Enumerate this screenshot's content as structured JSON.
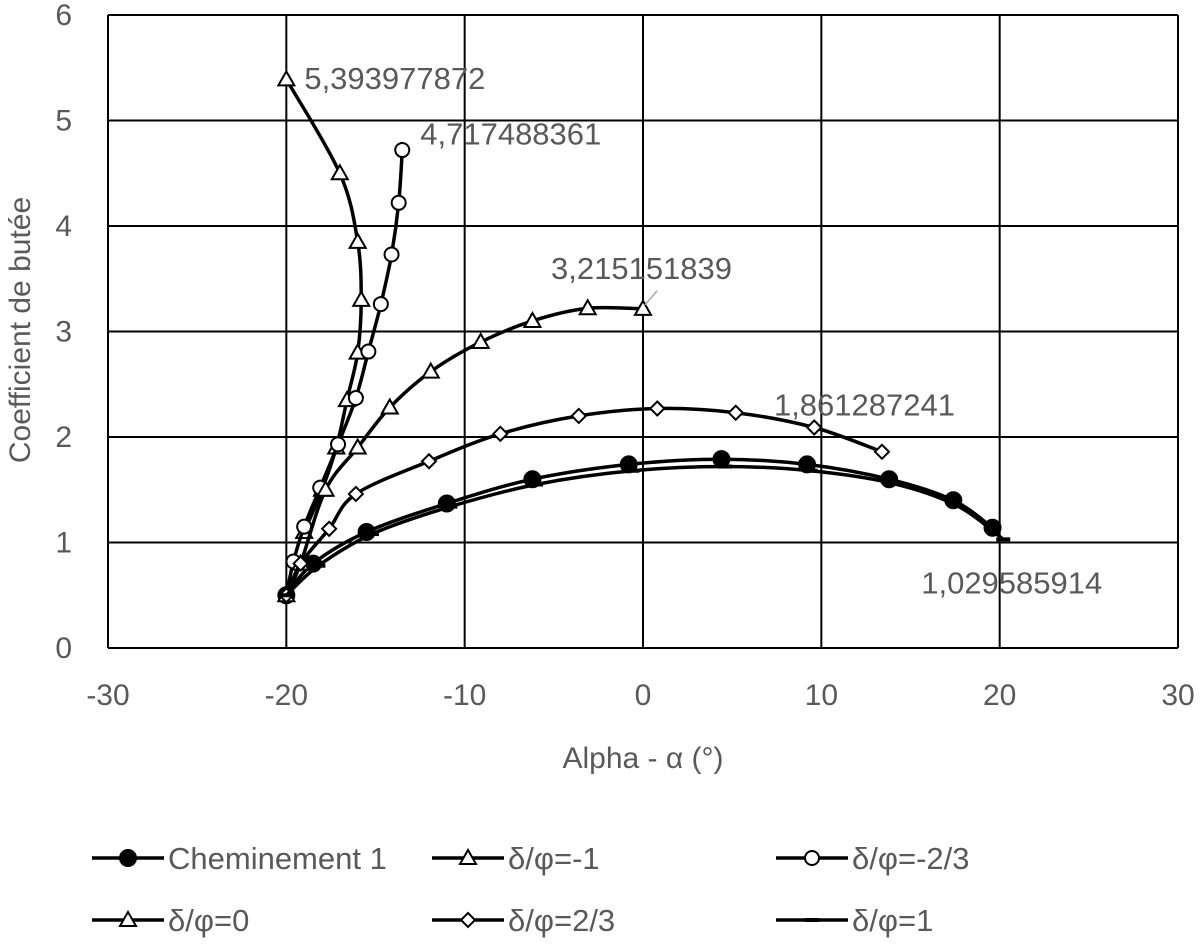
{
  "chart_data": {
    "type": "line",
    "title": "",
    "xlabel": "Alpha - α (°)",
    "ylabel": "Coefficient de butée",
    "xlim": [
      -30,
      30
    ],
    "ylim": [
      0,
      6
    ],
    "xticks": [
      -30,
      -20,
      -10,
      0,
      10,
      20,
      30
    ],
    "yticks": [
      0,
      1,
      2,
      3,
      4,
      5,
      6
    ],
    "xtick_labels": [
      "-30",
      "-20",
      "-10",
      "0",
      "10",
      "20",
      "30"
    ],
    "ytick_labels": [
      "0",
      "1",
      "2",
      "3",
      "4",
      "5",
      "6"
    ],
    "grid": true,
    "legend_position": "bottom",
    "series": [
      {
        "name": "Cheminement 1",
        "marker": "filled-circle",
        "x": [
          -20,
          -18.5,
          -15.5,
          -11,
          -6.2,
          -0.8,
          4.4,
          9.2,
          13.8,
          17.4,
          19.6
        ],
        "y": [
          0.5,
          0.8,
          1.1,
          1.37,
          1.6,
          1.74,
          1.79,
          1.74,
          1.6,
          1.4,
          1.14
        ]
      },
      {
        "name": "δ/φ=-1",
        "marker": "open-triangle",
        "x": [
          -20,
          -17,
          -16,
          -15.8,
          -16,
          -16.6,
          -17.2,
          -18,
          -19
        ],
        "y": [
          5.39,
          4.5,
          3.85,
          3.3,
          2.8,
          2.35,
          1.9,
          1.5,
          1.1
        ]
      },
      {
        "name": "δ/φ=-2/3",
        "marker": "open-circle",
        "x": [
          -13.5,
          -13.7,
          -14.1,
          -14.7,
          -15.4,
          -16.1,
          -17.1,
          -18.1,
          -19,
          -19.6,
          -20
        ],
        "y": [
          4.72,
          4.22,
          3.73,
          3.26,
          2.81,
          2.37,
          1.93,
          1.52,
          1.15,
          0.82,
          0.5
        ]
      },
      {
        "name": "δ/φ=0",
        "marker": "open-triangle",
        "x": [
          -20,
          -19.2,
          -17.8,
          -16,
          -14.2,
          -11.9,
          -9.1,
          -6.2,
          -3.1,
          0
        ],
        "y": [
          0.5,
          0.8,
          1.5,
          1.9,
          2.28,
          2.62,
          2.9,
          3.1,
          3.22,
          3.215
        ]
      },
      {
        "name": "δ/φ=2/3",
        "marker": "open-diamond",
        "x": [
          -20,
          -19.2,
          -17.6,
          -16.1,
          -12,
          -8,
          -3.6,
          0.8,
          5.2,
          9.6,
          13.4
        ],
        "y": [
          0.5,
          0.8,
          1.13,
          1.46,
          1.77,
          2.03,
          2.2,
          2.27,
          2.23,
          2.09,
          1.86
        ]
      },
      {
        "name": "δ/φ=1",
        "marker": "dash",
        "x": [
          -20,
          -18.2,
          -15.2,
          -10.8,
          -6,
          -0.6,
          4.6,
          9.4,
          14,
          17.6,
          20.2
        ],
        "y": [
          0.5,
          0.78,
          1.08,
          1.34,
          1.55,
          1.68,
          1.72,
          1.68,
          1.56,
          1.35,
          1.03
        ]
      }
    ],
    "annotations": [
      {
        "text": "5,393977872",
        "x": -20,
        "y": 5.394
      },
      {
        "text": "4,717488361",
        "x": -13.5,
        "y": 4.717
      },
      {
        "text": "3,215151839",
        "x": 0,
        "y": 3.215
      },
      {
        "text": "1,861287241",
        "x": 13.4,
        "y": 1.861
      },
      {
        "text": "1,029585914",
        "x": 20.2,
        "y": 1.03
      }
    ]
  },
  "colors": {
    "series": "#000000",
    "grid": "#000000",
    "text": "#595959",
    "background": "#ffffff"
  }
}
